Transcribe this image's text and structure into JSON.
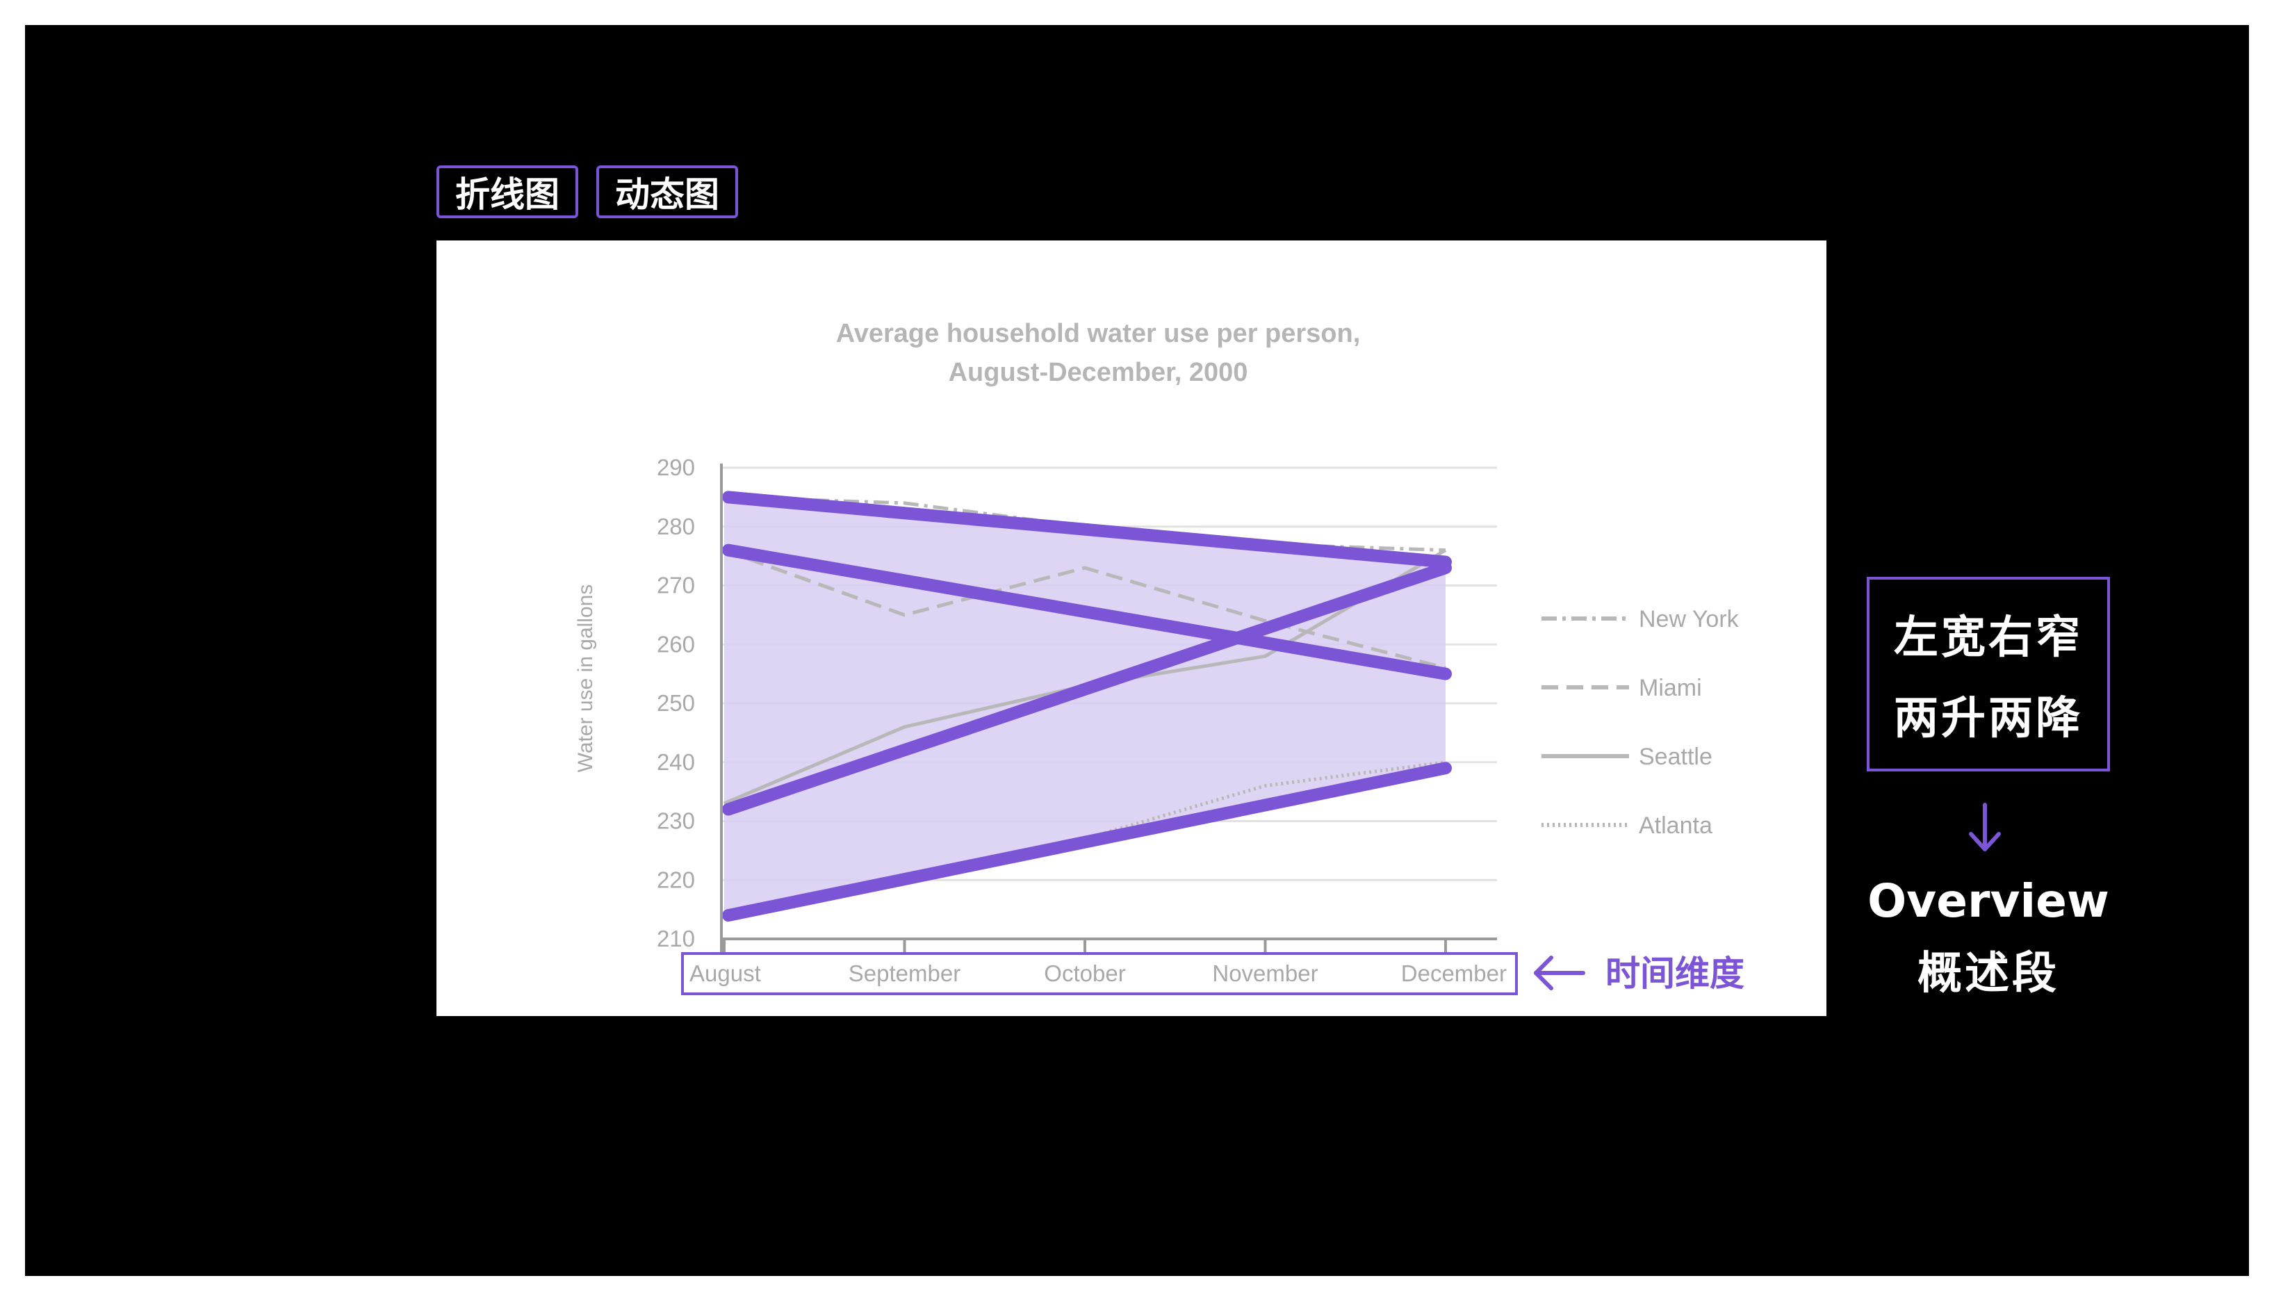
{
  "tags": [
    "折线图",
    "动态图"
  ],
  "chart_data": {
    "type": "line",
    "title_lines": [
      "Average household water use per person,",
      "August-December, 2000"
    ],
    "ylabel": "Water use in gallons",
    "xlabel": "",
    "categories": [
      "August",
      "September",
      "October",
      "November",
      "December"
    ],
    "yticks": [
      210,
      220,
      230,
      240,
      250,
      260,
      270,
      280,
      290
    ],
    "ylim": [
      210,
      290
    ],
    "grid": true,
    "legend_position": "right",
    "series": [
      {
        "name": "New York",
        "style": "dash-dot",
        "values": [
          285,
          284,
          280,
          277,
          276
        ]
      },
      {
        "name": "Miami",
        "style": "dashed",
        "values": [
          276,
          265,
          273,
          264,
          256
        ]
      },
      {
        "name": "Seattle",
        "style": "solid",
        "values": [
          233,
          246,
          253,
          258,
          276
        ]
      },
      {
        "name": "Atlanta",
        "style": "dotted",
        "values": [
          214,
          220,
          227,
          236,
          240
        ]
      }
    ],
    "trend_lines": [
      {
        "from": 285,
        "to": 274
      },
      {
        "from": 276,
        "to": 255
      },
      {
        "from": 232,
        "to": 273
      },
      {
        "from": 214,
        "to": 239
      }
    ],
    "colors": {
      "series": "#b8b8b8",
      "accent": "#7b55d6",
      "band": "#d8cdf1",
      "grid": "#e2e2e2"
    }
  },
  "annotations": {
    "time_label": "时间维度",
    "note_lines": [
      "左宽右窄",
      "两升两降"
    ],
    "overview_en": "Overview",
    "overview_zh": "概述段"
  }
}
